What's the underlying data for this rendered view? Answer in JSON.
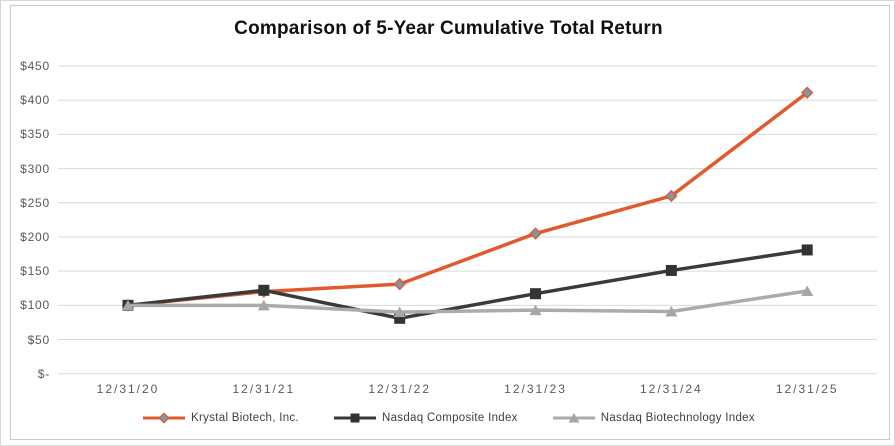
{
  "window": {
    "background": "#ffffff",
    "outer_border_color": "#d6d6d6",
    "frame_border_color": "#c9c9c9"
  },
  "chart_data": {
    "type": "line",
    "title": "Comparison of 5-Year Cumulative Total Return",
    "categories": [
      "12/31/20",
      "12/31/21",
      "12/31/22",
      "12/31/23",
      "12/31/24",
      "12/31/25"
    ],
    "series": [
      {
        "name": "Krystal Biotech, Inc.",
        "values": [
          100,
          120,
          131,
          205,
          260,
          411
        ],
        "color": "#e05a2d",
        "marker": "diamond",
        "marker_fill": "#7c96ab",
        "marker_stroke": "#e05a2d"
      },
      {
        "name": "Nasdaq Composite Index",
        "values": [
          100,
          122,
          81,
          117,
          151,
          181
        ],
        "color": "#3a3a3a",
        "marker": "square",
        "marker_fill": "#333333",
        "marker_stroke": "#3a3a3a"
      },
      {
        "name": "Nasdaq Biotechnology Index",
        "values": [
          100,
          100,
          90,
          93,
          91,
          121
        ],
        "color": "#ababab",
        "marker": "triangle",
        "marker_fill": "#a6a6a6",
        "marker_stroke": "#ababab"
      }
    ],
    "y_tick_labels": [
      "$-",
      "$50",
      "$100",
      "$150",
      "$200",
      "$250",
      "$300",
      "$350",
      "$400",
      "$450"
    ],
    "y_tick_values": [
      0,
      50,
      100,
      150,
      200,
      250,
      300,
      350,
      400,
      450
    ],
    "ylim": [
      0,
      450
    ],
    "xlabel": "",
    "ylabel": "",
    "gridlines": true,
    "gridline_color": "#d9d9d9",
    "axis_label_color": "#595959",
    "legend_position": "bottom"
  }
}
